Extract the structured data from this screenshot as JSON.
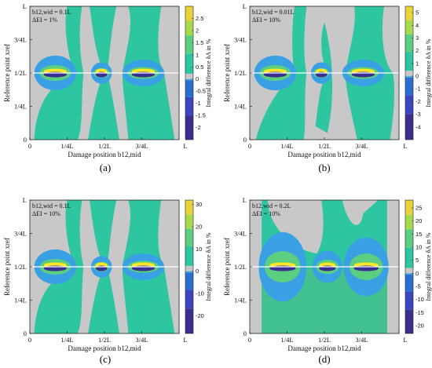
{
  "chart_data": [
    {
      "panel": "(a)",
      "type": "heatmap",
      "annotation": [
        "b12,wid = 0.1L",
        "ΔEI = 1%"
      ],
      "xlabel": "Damage position b12,mid",
      "ylabel": "Reference point xref",
      "xticks": [
        "0",
        "1/4L",
        "1/2L",
        "3/4L",
        "L"
      ],
      "yticks": [
        "0",
        "1/4L",
        "1/2L",
        "3/4L",
        "L"
      ],
      "colorbar_label": "Integral difference δA in %",
      "colorbar_ticks": [
        2.5,
        2,
        1.5,
        1,
        0.5,
        0,
        -0.5,
        -1,
        -1.5,
        -2
      ],
      "colorbar_range": [
        -2.5,
        3
      ]
    },
    {
      "panel": "(b)",
      "type": "heatmap",
      "annotation": [
        "b12,wid = 0.01L",
        "ΔEI = 10%"
      ],
      "xlabel": "Damage position b12,mid",
      "ylabel": "Reference point xref",
      "xticks": [
        "0",
        "1/4L",
        "1/2L",
        "3/4L",
        "L"
      ],
      "yticks": [
        "0",
        "1/4L",
        "1/2L",
        "3/4L",
        "L"
      ],
      "colorbar_label": "Integral difference δA in %",
      "colorbar_ticks": [
        5,
        4,
        3,
        2,
        1,
        0,
        -1,
        -2,
        -3,
        -4
      ],
      "colorbar_range": [
        -5,
        5.5
      ]
    },
    {
      "panel": "(c)",
      "type": "heatmap",
      "annotation": [
        "b12,wid = 0.1L",
        "ΔEI = 10%"
      ],
      "xlabel": "Damage position b12,mid",
      "ylabel": "Reference point xref",
      "xticks": [
        "0",
        "1/4L",
        "1/2L",
        "3/4L",
        "L"
      ],
      "yticks": [
        "0",
        "1/4L",
        "1/2L",
        "3/4L",
        "L"
      ],
      "colorbar_label": "Integral difference δA in %",
      "colorbar_ticks": [
        30,
        20,
        10,
        0,
        -10,
        -20
      ],
      "colorbar_range": [
        -28,
        32
      ]
    },
    {
      "panel": "(d)",
      "type": "heatmap",
      "annotation": [
        "b12,wid = 0.2L",
        "ΔEI = 10%"
      ],
      "xlabel": "Damage position b12,mid",
      "ylabel": "Reference point xref",
      "xticks": [
        "0",
        "1/4L",
        "1/2L",
        "3/4L",
        "L"
      ],
      "yticks": [
        "0",
        "1/4L",
        "1/2L",
        "3/4L",
        "L"
      ],
      "colorbar_label": "Integral difference δA in %",
      "colorbar_ticks": [
        25,
        20,
        15,
        10,
        5,
        0,
        -5,
        -10,
        -15,
        -20
      ],
      "colorbar_range": [
        -23,
        28
      ]
    }
  ],
  "colors": {
    "background": "#c8c8c8",
    "near_zero": "#2ec6a1",
    "zero_band": "#c8c8c8",
    "negative_scale": [
      "#3aa0e4",
      "#2b6fd0",
      "#3b46c0",
      "#3a2f8f"
    ],
    "positive_scale": [
      "#5bcf7f",
      "#a7d94d",
      "#e8d33a",
      "#fde725"
    ]
  }
}
